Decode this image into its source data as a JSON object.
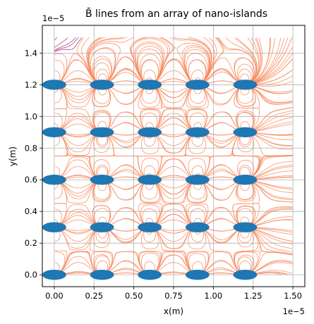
{
  "chart_data": {
    "type": "streamplot",
    "title": "B̄ lines from an array of nano-islands",
    "xlabel": "x(m)",
    "ylabel": "y(m)",
    "x_offset_label": "1e−5",
    "y_offset_label": "1e−5",
    "xlim": [
      -0.075,
      1.575
    ],
    "ylim": [
      -0.075,
      1.575
    ],
    "scale": "1e-5",
    "x_ticks": [
      0.0,
      0.25,
      0.5,
      0.75,
      1.0,
      1.25,
      1.5
    ],
    "x_tick_labels": [
      "0.00",
      "0.25",
      "0.50",
      "0.75",
      "1.00",
      "1.25",
      "1.50"
    ],
    "y_ticks": [
      0.0,
      0.2,
      0.4,
      0.6,
      0.8,
      1.0,
      1.2,
      1.4
    ],
    "y_tick_labels": [
      "0.0",
      "0.2",
      "0.4",
      "0.6",
      "0.8",
      "1.0",
      "1.2",
      "1.4"
    ],
    "grid": true,
    "islands": {
      "x": [
        0.0,
        0.3,
        0.6,
        0.9,
        1.2
      ],
      "y": [
        0.0,
        0.3,
        0.6,
        0.9,
        1.2
      ],
      "half_width": 0.075,
      "half_height": 0.032,
      "color": "#1f77b4"
    },
    "stream_domain": [
      0.0,
      1.5
    ],
    "colormap_colors": [
      "#3b0f70",
      "#6b1f7f",
      "#a8327d",
      "#de4968",
      "#f7885c"
    ]
  }
}
